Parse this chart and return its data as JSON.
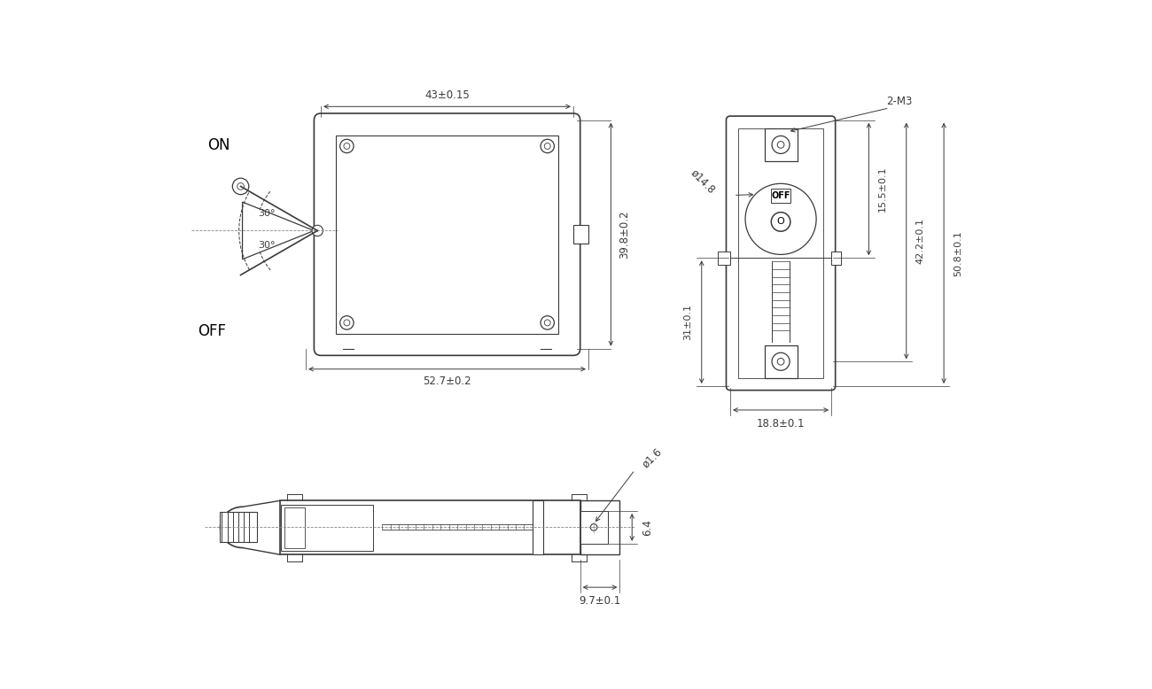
{
  "bg_color": "#ffffff",
  "line_color": "#3a3a3a",
  "dim_color": "#3a3a3a",
  "front": {
    "dim_top": "43±0.15",
    "dim_bottom": "52.7±0.2",
    "dim_right": "39.8±0.2"
  },
  "side": {
    "dim_2m3": "2-M3",
    "dim_phi": "ø14.8",
    "dim_15": "15.5±0.1",
    "dim_42": "42.2±0.1",
    "dim_50": "50.8±0.1",
    "dim_31": "31±0.1",
    "dim_18": "18.8±0.1"
  },
  "bottom": {
    "dim_phi16": "ø1.6",
    "dim_64": "6.4",
    "dim_97": "9.7±0.1"
  }
}
